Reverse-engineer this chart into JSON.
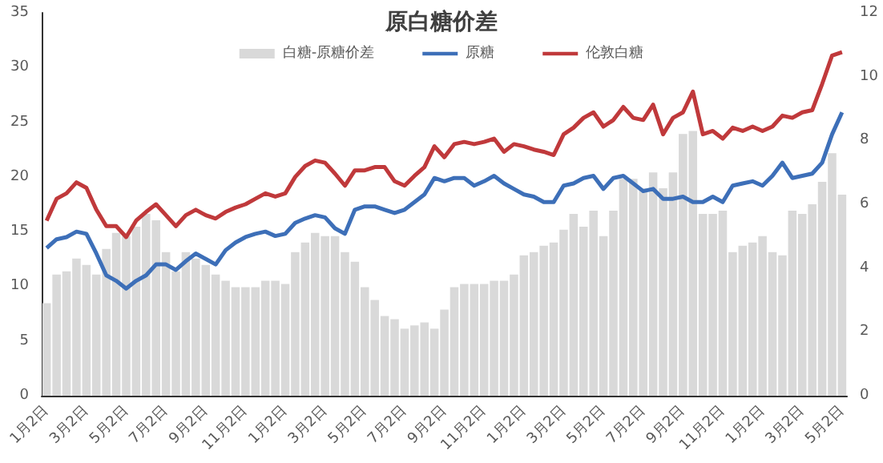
{
  "chart_data": {
    "type": "line",
    "title": "原白糖价差",
    "legend": "top",
    "grid": false,
    "categories": [
      "1月2日",
      null,
      null,
      null,
      "3月2日",
      null,
      null,
      null,
      "5月2日",
      null,
      null,
      null,
      "7月2日",
      null,
      null,
      null,
      "9月2日",
      null,
      null,
      null,
      "11月2日",
      null,
      null,
      null,
      "1月2日",
      null,
      null,
      null,
      "3月2日",
      null,
      null,
      null,
      "5月2日",
      null,
      null,
      null,
      "7月2日",
      null,
      null,
      null,
      "9月2日",
      null,
      null,
      null,
      "11月2日",
      null,
      null,
      null,
      "1月2日",
      null,
      null,
      null,
      "3月2日",
      null,
      null,
      null,
      "5月2日",
      null,
      null,
      null,
      "7月2日",
      null,
      null,
      null,
      "9月2日",
      null,
      null,
      null,
      "11月2日",
      null,
      null,
      null,
      "1月2日",
      null,
      null,
      null,
      "3月2日",
      null,
      null,
      null,
      "5月2日"
    ],
    "ylim": [
      0,
      35
    ],
    "yticks": [
      0,
      5,
      10,
      15,
      20,
      25,
      30,
      35
    ],
    "y2lim": [
      0,
      12
    ],
    "y2ticks": [
      0,
      2,
      4,
      6,
      8,
      10,
      12
    ],
    "series": [
      {
        "name": "白糖-原糖价差",
        "type": "bar",
        "axis": "y2",
        "color": "#d9d9d9",
        "values": [
          2.9,
          3.8,
          3.9,
          4.3,
          4.1,
          3.8,
          4.6,
          5.1,
          5.0,
          5.3,
          5.7,
          5.5,
          4.5,
          3.9,
          4.5,
          4.3,
          4.1,
          3.8,
          3.6,
          3.4,
          3.4,
          3.4,
          3.6,
          3.6,
          3.5,
          4.5,
          4.8,
          5.1,
          5.0,
          5.0,
          4.5,
          4.2,
          3.4,
          3.0,
          2.5,
          2.4,
          2.1,
          2.2,
          2.3,
          2.1,
          2.7,
          3.4,
          3.5,
          3.5,
          3.5,
          3.6,
          3.6,
          3.8,
          4.4,
          4.5,
          4.7,
          4.8,
          5.2,
          5.7,
          5.3,
          5.8,
          5.0,
          5.8,
          6.8,
          6.8,
          6.5,
          7.0,
          6.5,
          7.0,
          8.2,
          8.3,
          5.7,
          5.7,
          5.8,
          4.5,
          4.7,
          4.8,
          5.0,
          4.5,
          4.4,
          5.8,
          5.7,
          6.0,
          6.7,
          7.6,
          6.3
        ]
      },
      {
        "name": "原糖",
        "color": "#3d6fb8",
        "values": [
          13.5,
          14.3,
          14.5,
          15,
          14.8,
          13,
          11,
          10.5,
          9.8,
          10.5,
          11,
          12,
          12,
          11.5,
          12.3,
          13,
          12.5,
          12,
          13.3,
          14,
          14.5,
          14.8,
          15,
          14.6,
          14.8,
          15.8,
          16.2,
          16.5,
          16.3,
          15.3,
          14.8,
          17,
          17.3,
          17.3,
          17,
          16.7,
          17,
          17.7,
          18.4,
          19.9,
          19.6,
          19.9,
          19.9,
          19.2,
          19.6,
          20.1,
          19.4,
          18.9,
          18.4,
          18.2,
          17.7,
          17.7,
          19.2,
          19.4,
          19.9,
          20.1,
          18.9,
          19.9,
          20.1,
          19.4,
          18.7,
          18.9,
          18,
          18,
          18.2,
          17.7,
          17.7,
          18.2,
          17.7,
          19.2,
          19.4,
          19.6,
          19.2,
          20.1,
          21.3,
          19.9,
          20.1,
          20.3,
          21.3,
          23.9,
          25.9
        ]
      },
      {
        "name": "伦敦白糖",
        "color": "#c0393b",
        "values": [
          16,
          18,
          18.5,
          19.5,
          19,
          17,
          15.5,
          15.5,
          14.5,
          16,
          16.8,
          17.5,
          16.5,
          15.5,
          16.5,
          17,
          16.5,
          16.2,
          16.8,
          17.2,
          17.5,
          18,
          18.5,
          18.2,
          18.5,
          20,
          21,
          21.5,
          21.3,
          20.3,
          19.2,
          20.6,
          20.6,
          20.9,
          20.9,
          19.6,
          19.2,
          20.1,
          20.9,
          22.8,
          21.8,
          23,
          23.2,
          23,
          23.2,
          23.5,
          22.3,
          23,
          22.8,
          22.5,
          22.3,
          22,
          23.9,
          24.5,
          25.4,
          25.9,
          24.6,
          25.2,
          26.4,
          25.4,
          25.2,
          26.6,
          23.9,
          25.4,
          25.9,
          27.8,
          23.9,
          24.2,
          23.5,
          24.5,
          24.2,
          24.6,
          24.2,
          24.6,
          25.6,
          25.4,
          25.9,
          26.1,
          28.5,
          31.1,
          31.4
        ]
      }
    ]
  }
}
